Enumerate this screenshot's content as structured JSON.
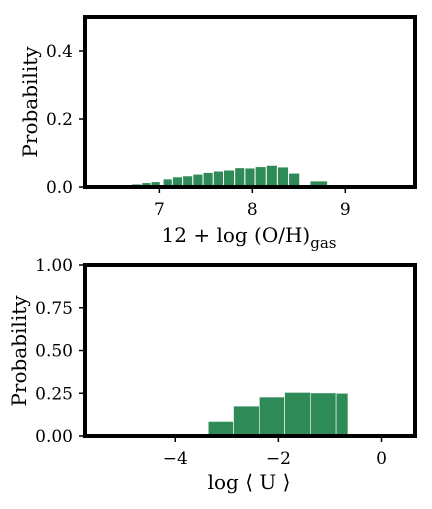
{
  "chart_data": [
    {
      "type": "bar",
      "title": "",
      "xlabel_main": "12 + log (O/H)",
      "xlabel_sub": "gas",
      "ylabel": "Probability",
      "xlim": [
        6.2,
        9.75
      ],
      "ylim": [
        0.0,
        0.5
      ],
      "xticks": [
        {
          "value": 7,
          "label": "7"
        },
        {
          "value": 8,
          "label": "8"
        },
        {
          "value": 9,
          "label": "9"
        }
      ],
      "yticks": [
        {
          "value": 0.0,
          "label": "0.0"
        },
        {
          "value": 0.2,
          "label": "0.2"
        },
        {
          "value": 0.4,
          "label": "0.4"
        }
      ],
      "bar_color": "#2e8b57",
      "bins": [
        {
          "x0": 6.6,
          "x1": 6.7,
          "value": 0.004
        },
        {
          "x0": 6.7,
          "x1": 6.81,
          "value": 0.009
        },
        {
          "x0": 6.81,
          "x1": 6.91,
          "value": 0.013
        },
        {
          "x0": 6.91,
          "x1": 7.01,
          "value": 0.016
        },
        {
          "x0": 7.04,
          "x1": 7.14,
          "value": 0.024
        },
        {
          "x0": 7.14,
          "x1": 7.25,
          "value": 0.03
        },
        {
          "x0": 7.25,
          "x1": 7.36,
          "value": 0.033
        },
        {
          "x0": 7.36,
          "x1": 7.47,
          "value": 0.038
        },
        {
          "x0": 7.47,
          "x1": 7.58,
          "value": 0.043
        },
        {
          "x0": 7.58,
          "x1": 7.69,
          "value": 0.047
        },
        {
          "x0": 7.69,
          "x1": 7.81,
          "value": 0.05
        },
        {
          "x0": 7.81,
          "x1": 7.92,
          "value": 0.057
        },
        {
          "x0": 7.92,
          "x1": 8.03,
          "value": 0.056
        },
        {
          "x0": 8.03,
          "x1": 8.15,
          "value": 0.06
        },
        {
          "x0": 8.15,
          "x1": 8.27,
          "value": 0.064
        },
        {
          "x0": 8.27,
          "x1": 8.39,
          "value": 0.059
        },
        {
          "x0": 8.39,
          "x1": 8.51,
          "value": 0.041
        },
        {
          "x0": 8.62,
          "x1": 8.81,
          "value": 0.018
        },
        {
          "x0": 8.81,
          "x1": 8.93,
          "value": 0.006
        },
        {
          "x0": 8.93,
          "x1": 9.05,
          "value": 0.003
        }
      ]
    },
    {
      "type": "bar",
      "title": "",
      "xlabel": "log ⟨ U ⟩",
      "ylabel": "Probability",
      "xlim": [
        -5.75,
        0.65
      ],
      "ylim": [
        0.0,
        1.0
      ],
      "xticks": [
        {
          "value": -4,
          "label": "−4"
        },
        {
          "value": -2,
          "label": "−2"
        },
        {
          "value": 0,
          "label": "0"
        }
      ],
      "yticks": [
        {
          "value": 0.0,
          "label": "0.00"
        },
        {
          "value": 0.25,
          "label": "0.25"
        },
        {
          "value": 0.5,
          "label": "0.50"
        },
        {
          "value": 0.75,
          "label": "0.75"
        },
        {
          "value": 1.0,
          "label": "1.00"
        }
      ],
      "bar_color": "#2e8b57",
      "bins": [
        {
          "x0": -3.36,
          "x1": -2.87,
          "value": 0.085
        },
        {
          "x0": -2.87,
          "x1": -2.37,
          "value": 0.175
        },
        {
          "x0": -2.37,
          "x1": -1.88,
          "value": 0.228
        },
        {
          "x0": -1.88,
          "x1": -1.38,
          "value": 0.255
        },
        {
          "x0": -1.38,
          "x1": -0.88,
          "value": 0.252
        },
        {
          "x0": -0.88,
          "x1": -0.65,
          "value": 0.25
        }
      ]
    }
  ]
}
